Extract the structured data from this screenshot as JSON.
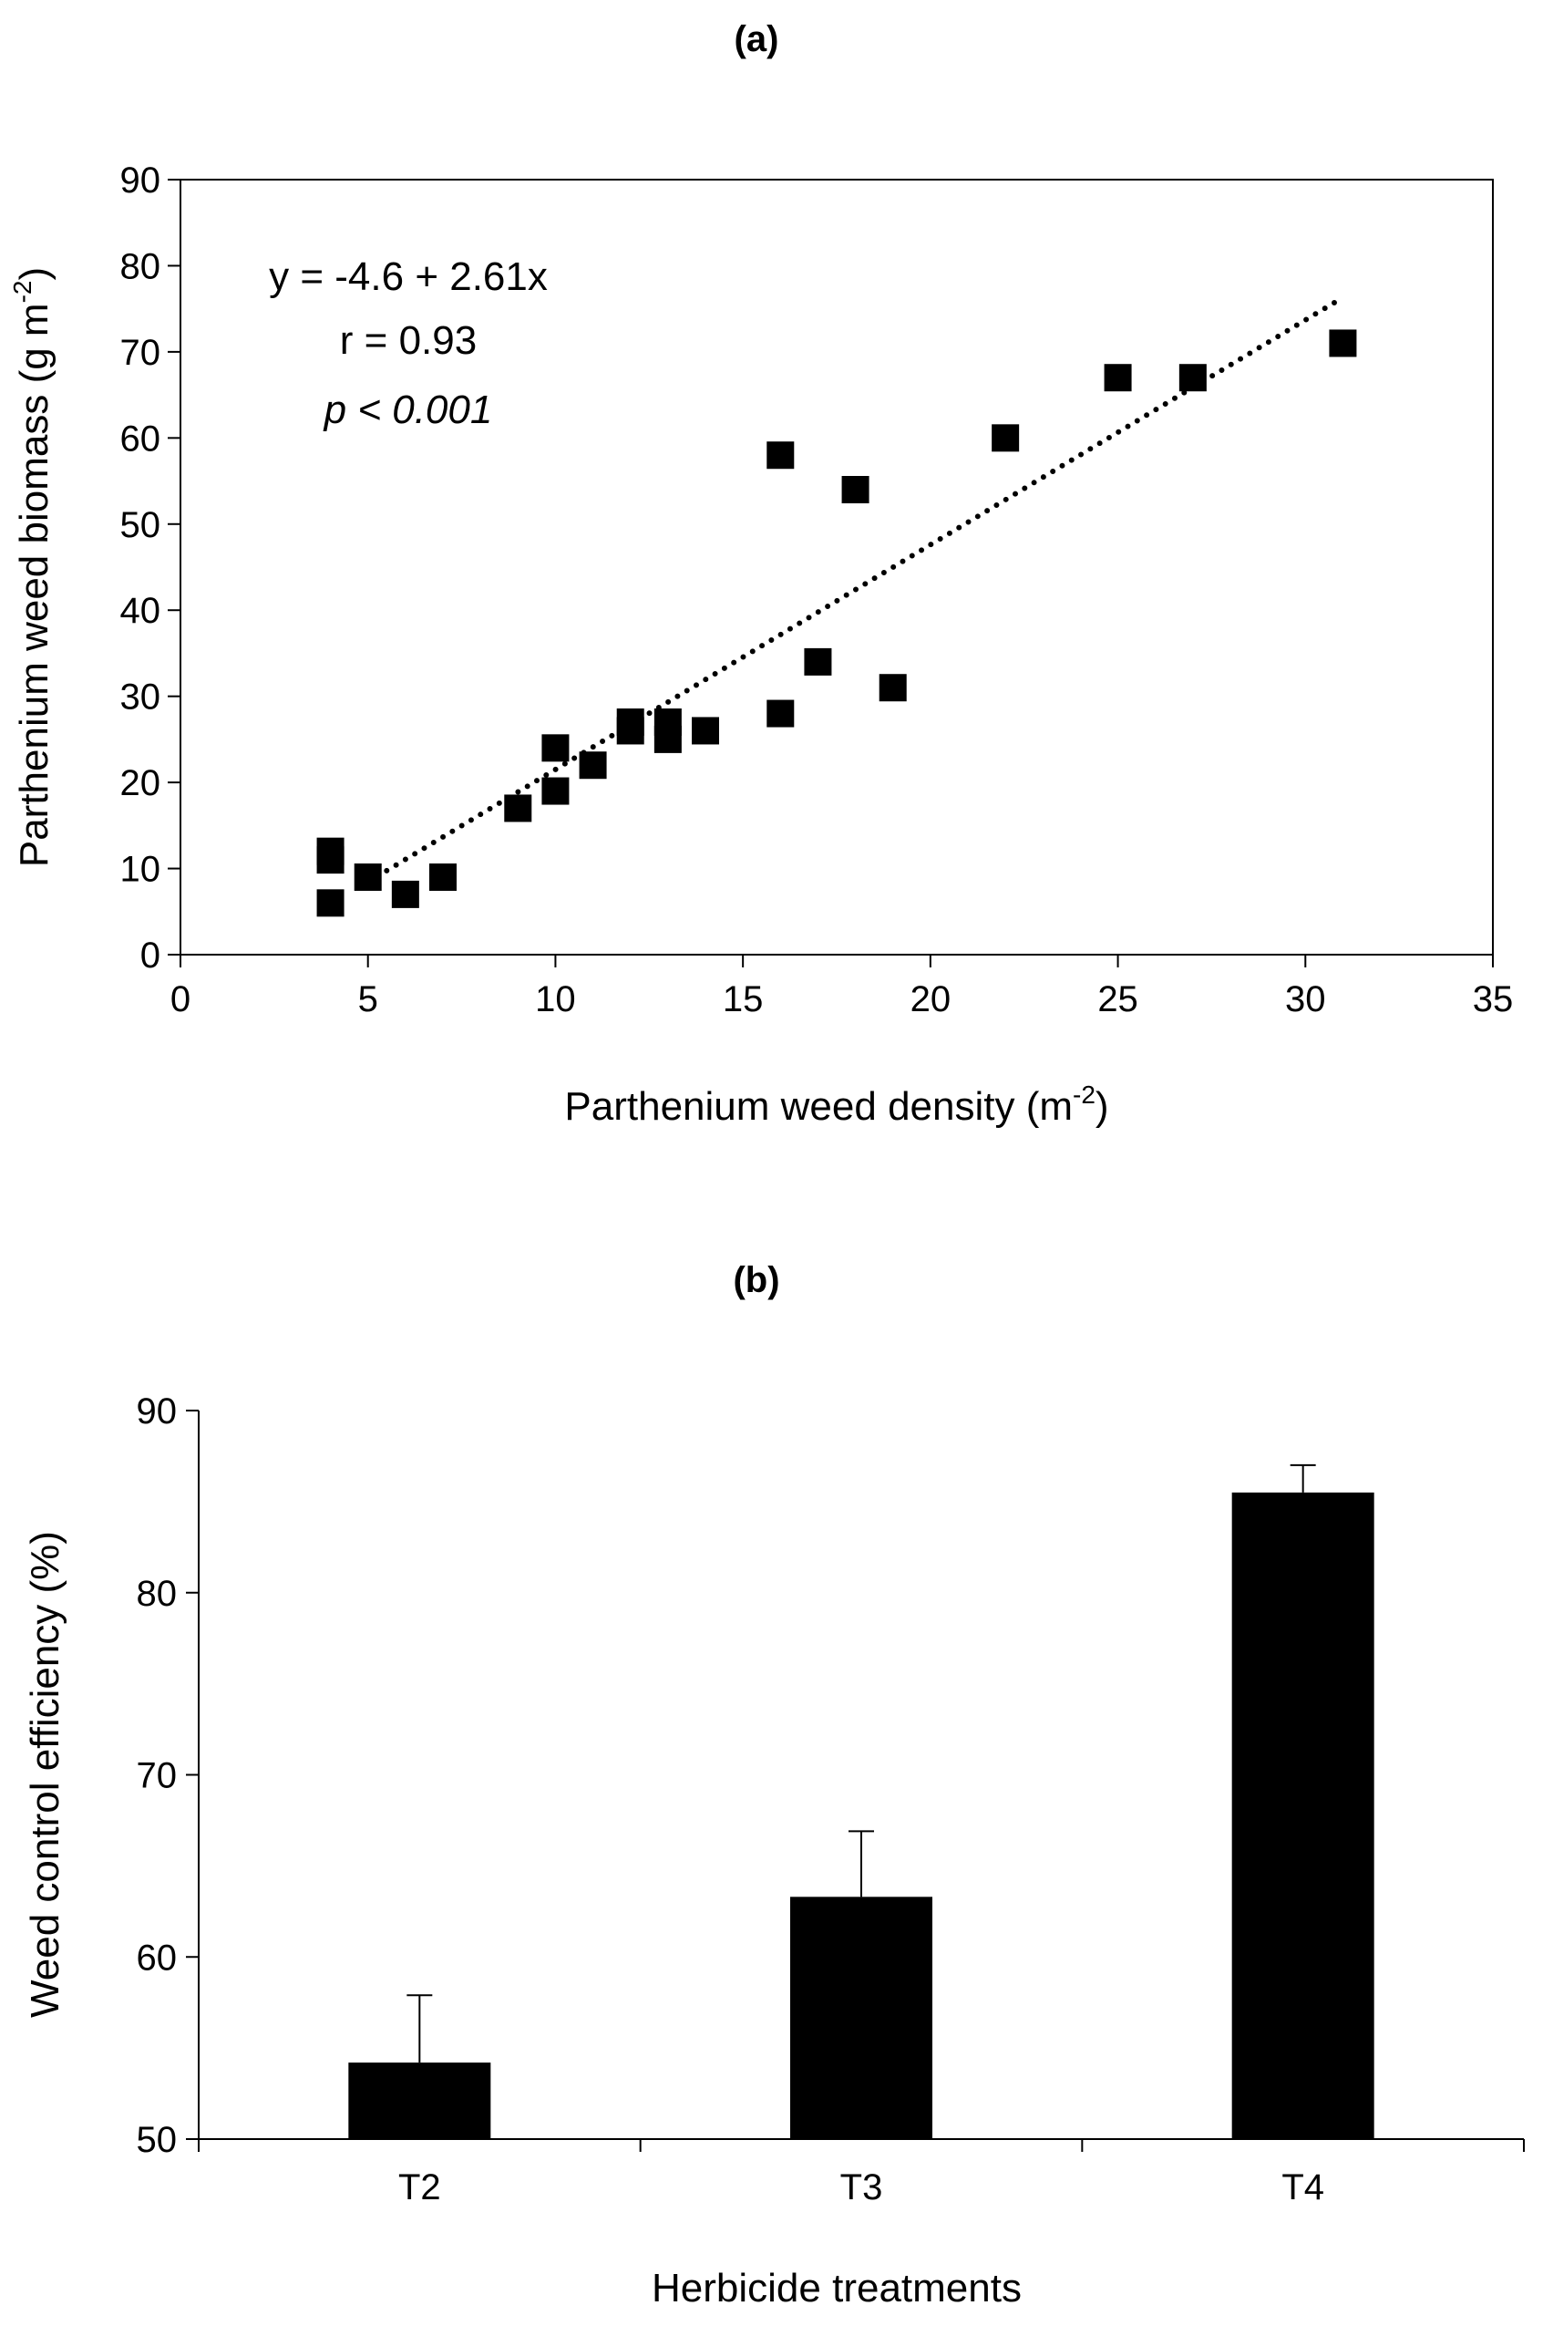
{
  "chart_data": [
    {
      "panel_label": "(a)",
      "type": "scatter",
      "xlabel": "Parthenium weed density (m",
      "xlabel_sup": "-2",
      "xlabel_end": ")",
      "ylabel": "Parthenium weed biomass (g m",
      "ylabel_sup": "-2",
      "ylabel_end": ")",
      "xlim": [
        0,
        35
      ],
      "ylim": [
        0,
        90
      ],
      "xticks": [
        0,
        5,
        10,
        15,
        20,
        25,
        30,
        35
      ],
      "yticks": [
        0,
        10,
        20,
        30,
        40,
        50,
        60,
        70,
        80,
        90
      ],
      "points": [
        {
          "x": 4,
          "y": 6
        },
        {
          "x": 4,
          "y": 11
        },
        {
          "x": 4,
          "y": 12
        },
        {
          "x": 5,
          "y": 9
        },
        {
          "x": 6,
          "y": 7
        },
        {
          "x": 7,
          "y": 9
        },
        {
          "x": 9,
          "y": 17
        },
        {
          "x": 10,
          "y": 19
        },
        {
          "x": 10,
          "y": 24
        },
        {
          "x": 11,
          "y": 22
        },
        {
          "x": 12,
          "y": 26
        },
        {
          "x": 12,
          "y": 27
        },
        {
          "x": 13,
          "y": 25
        },
        {
          "x": 13,
          "y": 27
        },
        {
          "x": 14,
          "y": 26
        },
        {
          "x": 16,
          "y": 28
        },
        {
          "x": 16,
          "y": 58
        },
        {
          "x": 17,
          "y": 34
        },
        {
          "x": 18,
          "y": 54
        },
        {
          "x": 19,
          "y": 31
        },
        {
          "x": 22,
          "y": 60
        },
        {
          "x": 25,
          "y": 67
        },
        {
          "x": 27,
          "y": 67
        },
        {
          "x": 31,
          "y": 71
        }
      ],
      "trendline": {
        "intercept": -4.6,
        "slope": 2.61,
        "x_start": 5,
        "x_end": 31,
        "style": "dotted"
      },
      "annotations": {
        "equation": "y = -4.6 + 2.61x",
        "r": "r = 0.93",
        "p": "p < 0.001"
      }
    },
    {
      "panel_label": "(b)",
      "type": "bar",
      "xlabel": "Herbicide treatments",
      "ylabel": "Weed control efficiency (%)",
      "categories": [
        "T2",
        "T3",
        "T4"
      ],
      "values": [
        54.2,
        63.3,
        85.5
      ],
      "errors": [
        3.7,
        3.6,
        1.5
      ],
      "ylim": [
        50,
        90
      ],
      "yticks": [
        50,
        60,
        70,
        80,
        90
      ],
      "bar_color": "#000000"
    }
  ]
}
